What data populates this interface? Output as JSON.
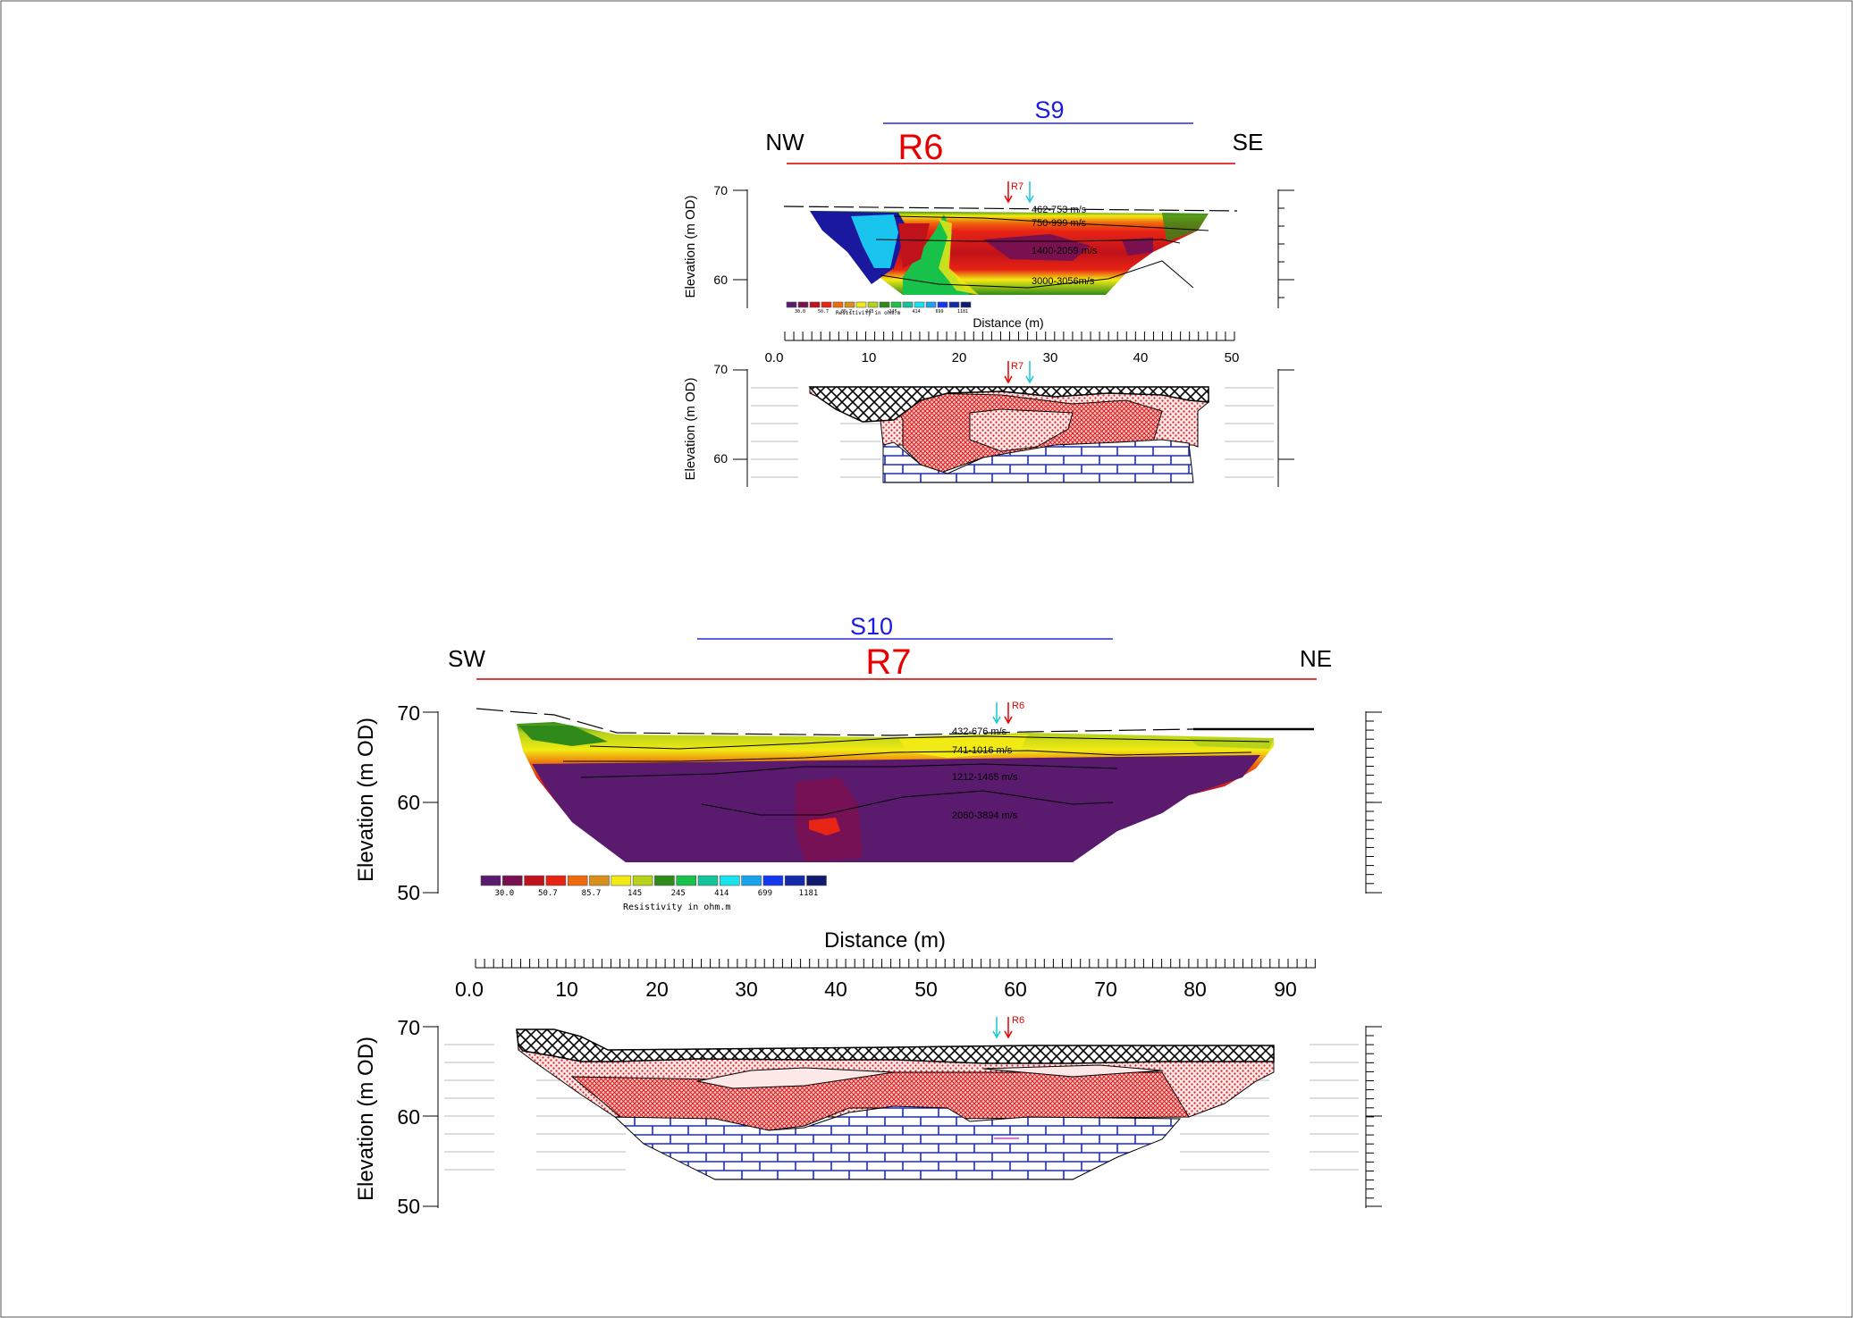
{
  "colors": {
    "profile_line": "#e33b3b",
    "seismic_line": "#2a2ae0",
    "marker_red": "#e60000",
    "marker_cyan": "#16c6d6",
    "label_red": "#e60000",
    "label_blue": "#1a1ae6"
  },
  "icons": {
    "marker_down": "down-arrow-icon"
  },
  "r6": {
    "direction_left": "NW",
    "direction_right": "SE",
    "profile_label": "R6",
    "seismic_label": "S9",
    "marker_label": "R7",
    "y_label": "Elevation (m OD)",
    "y_ticks": [
      "70",
      "60"
    ],
    "x_label": "Distance (m)",
    "x_ticks": [
      "0.0",
      "10",
      "20",
      "30",
      "40",
      "50"
    ],
    "velocity_labels": [
      "462-753 m/s",
      "750-999 m/s",
      "1400-2059 m/s",
      "3000-3056m/s"
    ],
    "legend_caption": "Resistivity in ohm.m",
    "legend_values": [
      "30.0",
      "50.7",
      "85.7",
      "145",
      "245",
      "414",
      "699",
      "1181"
    ]
  },
  "r7": {
    "direction_left": "SW",
    "direction_right": "NE",
    "profile_label": "R7",
    "seismic_label": "S10",
    "marker_label": "R6",
    "y_label": "Elevation (m OD)",
    "y_ticks": [
      "70",
      "60",
      "50"
    ],
    "x_label": "Distance (m)",
    "x_ticks": [
      "0.0",
      "10",
      "20",
      "30",
      "40",
      "50",
      "60",
      "70",
      "80",
      "90"
    ],
    "velocity_labels": [
      "432-676 m/s",
      "741-1016 m/s",
      "1212-1465 m/s",
      "2060-3894 m/s"
    ],
    "legend_caption": "Resistivity in ohm.m",
    "legend_values": [
      "30.0",
      "50.7",
      "85.7",
      "145",
      "245",
      "414",
      "699",
      "1181"
    ]
  },
  "resistivity_scale": [
    "#5a1a6e",
    "#7a1050",
    "#c0121a",
    "#e82414",
    "#ef6a0c",
    "#d8901a",
    "#f2ea14",
    "#b6d21a",
    "#2f8a1a",
    "#18c24a",
    "#14c49a",
    "#19e4ee",
    "#1aa4ee",
    "#1438ee",
    "#142aaa",
    "#0e1a6e"
  ]
}
